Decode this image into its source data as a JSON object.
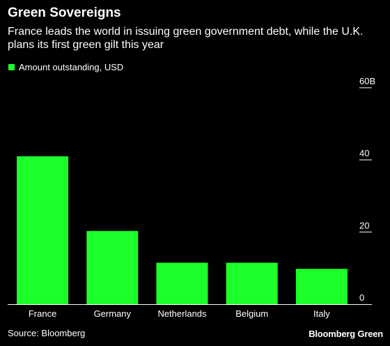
{
  "title": "Green Sovereigns",
  "subtitle": "France leads the world in issuing green government debt, while the U.K. plans its first green gilt this year",
  "source": "Source: Bloomberg",
  "brand": "Bloomberg Green",
  "colors": {
    "background": "#000000",
    "bar": "#1cff2a",
    "text": "#ffffff",
    "axis": "#ffffff"
  },
  "chart_data": {
    "type": "bar",
    "categories": [
      "France",
      "Germany",
      "Netherlands",
      "Belgium",
      "Italy"
    ],
    "series": [
      {
        "name": "Amount outstanding, USD",
        "values": [
          41,
          20.3,
          11.5,
          11.5,
          9.8
        ]
      }
    ],
    "y_ticks": [
      {
        "value": 60,
        "label": "60B"
      },
      {
        "value": 40,
        "label": "40"
      },
      {
        "value": 20,
        "label": "20"
      },
      {
        "value": 0,
        "label": "0"
      }
    ],
    "ylim": [
      0,
      60
    ],
    "legend_position": "top-left",
    "grid": false,
    "y_axis_side": "right"
  }
}
